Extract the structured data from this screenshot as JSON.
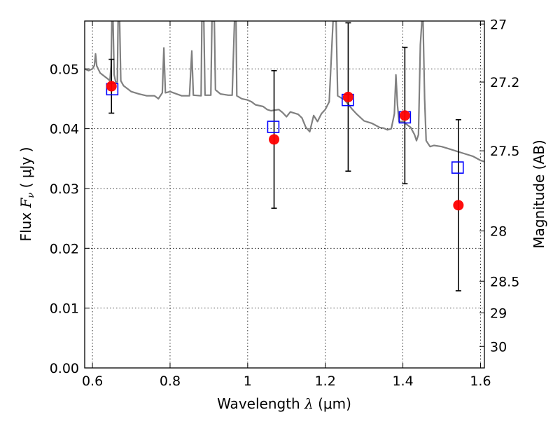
{
  "chart_data": {
    "type": "scatter",
    "xlabel": {
      "prefix": "Wavelength  ",
      "symbol": "λ",
      "suffix": " (μm)"
    },
    "ylabel": {
      "prefix": "Flux  ",
      "symbol": "F",
      "subscript": "ν",
      "suffix": "  ( μJy )"
    },
    "y2label": "Magnitude (AB)",
    "xlim": [
      0.58,
      1.61
    ],
    "ylim": [
      0.0,
      0.058
    ],
    "grid": true,
    "x_ticks": [
      {
        "value": 0.6,
        "label": "0.6"
      },
      {
        "value": 0.8,
        "label": "0.8"
      },
      {
        "value": 1.0,
        "label": "1"
      },
      {
        "value": 1.2,
        "label": "1.2"
      },
      {
        "value": 1.4,
        "label": "1.4"
      },
      {
        "value": 1.6,
        "label": "1.6"
      }
    ],
    "y_ticks": [
      {
        "value": 0.0,
        "label": "0.00"
      },
      {
        "value": 0.01,
        "label": "0.01"
      },
      {
        "value": 0.02,
        "label": "0.02"
      },
      {
        "value": 0.03,
        "label": "0.03"
      },
      {
        "value": 0.04,
        "label": "0.04"
      },
      {
        "value": 0.05,
        "label": "0.05"
      }
    ],
    "y2_ticks": [
      {
        "flux": 0.0575,
        "label": "27"
      },
      {
        "flux": 0.0478,
        "label": "27.2"
      },
      {
        "flux": 0.0363,
        "label": "27.5"
      },
      {
        "flux": 0.0229,
        "label": "28"
      },
      {
        "flux": 0.0145,
        "label": "28.5"
      },
      {
        "flux": 0.0092,
        "label": "29"
      },
      {
        "flux": 0.0036,
        "label": "30"
      }
    ],
    "series": [
      {
        "kind": "observed",
        "marker": "circle",
        "color": "#ff0000",
        "points": [
          {
            "x": 0.649,
            "y": 0.0471,
            "err": 0.0045
          },
          {
            "x": 1.068,
            "y": 0.0382,
            "err": 0.0115
          },
          {
            "x": 1.259,
            "y": 0.0453,
            "err": 0.0124
          },
          {
            "x": 1.405,
            "y": 0.0422,
            "err": 0.0114
          },
          {
            "x": 1.543,
            "y": 0.0272,
            "err": 0.0143
          }
        ]
      },
      {
        "kind": "model_band_flux",
        "marker": "square-open",
        "color": "#0000ff",
        "points": [
          {
            "x": 0.651,
            "y": 0.0466
          },
          {
            "x": 1.066,
            "y": 0.0403
          },
          {
            "x": 1.258,
            "y": 0.0448
          },
          {
            "x": 1.405,
            "y": 0.0419
          },
          {
            "x": 1.541,
            "y": 0.0335
          }
        ]
      },
      {
        "kind": "model_spectrum",
        "marker": "line",
        "color": "#808080",
        "points": [
          [
            0.58,
            0.05
          ],
          [
            0.59,
            0.0497
          ],
          [
            0.6,
            0.05
          ],
          [
            0.605,
            0.0506
          ],
          [
            0.608,
            0.0525
          ],
          [
            0.611,
            0.0505
          ],
          [
            0.62,
            0.0493
          ],
          [
            0.63,
            0.0488
          ],
          [
            0.64,
            0.0483
          ],
          [
            0.645,
            0.048
          ],
          [
            0.648,
            0.0505
          ],
          [
            0.65,
            0.058
          ],
          [
            0.653,
            0.058
          ],
          [
            0.656,
            0.049
          ],
          [
            0.66,
            0.0478
          ],
          [
            0.664,
            0.0478
          ],
          [
            0.666,
            0.058
          ],
          [
            0.67,
            0.058
          ],
          [
            0.673,
            0.048
          ],
          [
            0.68,
            0.0472
          ],
          [
            0.7,
            0.0462
          ],
          [
            0.72,
            0.0458
          ],
          [
            0.74,
            0.0455
          ],
          [
            0.76,
            0.0455
          ],
          [
            0.77,
            0.045
          ],
          [
            0.78,
            0.046
          ],
          [
            0.784,
            0.0535
          ],
          [
            0.788,
            0.046
          ],
          [
            0.8,
            0.0462
          ],
          [
            0.83,
            0.0455
          ],
          [
            0.85,
            0.0455
          ],
          [
            0.856,
            0.053
          ],
          [
            0.86,
            0.0456
          ],
          [
            0.88,
            0.0455
          ],
          [
            0.882,
            0.058
          ],
          [
            0.887,
            0.058
          ],
          [
            0.89,
            0.0456
          ],
          [
            0.905,
            0.0456
          ],
          [
            0.908,
            0.058
          ],
          [
            0.914,
            0.058
          ],
          [
            0.917,
            0.0465
          ],
          [
            0.93,
            0.0458
          ],
          [
            0.95,
            0.0456
          ],
          [
            0.96,
            0.0456
          ],
          [
            0.966,
            0.058
          ],
          [
            0.97,
            0.058
          ],
          [
            0.972,
            0.0455
          ],
          [
            0.985,
            0.045
          ],
          [
            1.0,
            0.0448
          ],
          [
            1.01,
            0.0445
          ],
          [
            1.02,
            0.044
          ],
          [
            1.04,
            0.0437
          ],
          [
            1.05,
            0.0432
          ],
          [
            1.06,
            0.043
          ],
          [
            1.08,
            0.0432
          ],
          [
            1.09,
            0.0427
          ],
          [
            1.1,
            0.042
          ],
          [
            1.11,
            0.0428
          ],
          [
            1.13,
            0.0424
          ],
          [
            1.14,
            0.0418
          ],
          [
            1.15,
            0.0402
          ],
          [
            1.16,
            0.0395
          ],
          [
            1.17,
            0.0422
          ],
          [
            1.18,
            0.0412
          ],
          [
            1.19,
            0.0425
          ],
          [
            1.2,
            0.0432
          ],
          [
            1.21,
            0.0445
          ],
          [
            1.22,
            0.058
          ],
          [
            1.228,
            0.058
          ],
          [
            1.232,
            0.0455
          ],
          [
            1.25,
            0.0448
          ],
          [
            1.26,
            0.044
          ],
          [
            1.27,
            0.0432
          ],
          [
            1.28,
            0.0425
          ],
          [
            1.3,
            0.0413
          ],
          [
            1.32,
            0.0409
          ],
          [
            1.34,
            0.0402
          ],
          [
            1.35,
            0.0401
          ],
          [
            1.36,
            0.0398
          ],
          [
            1.37,
            0.04
          ],
          [
            1.378,
            0.0425
          ],
          [
            1.382,
            0.049
          ],
          [
            1.386,
            0.044
          ],
          [
            1.39,
            0.0412
          ],
          [
            1.4,
            0.0412
          ],
          [
            1.42,
            0.0402
          ],
          [
            1.43,
            0.039
          ],
          [
            1.435,
            0.038
          ],
          [
            1.44,
            0.039
          ],
          [
            1.445,
            0.054
          ],
          [
            1.449,
            0.058
          ],
          [
            1.452,
            0.058
          ],
          [
            1.456,
            0.045
          ],
          [
            1.46,
            0.038
          ],
          [
            1.465,
            0.0375
          ],
          [
            1.47,
            0.037
          ],
          [
            1.48,
            0.0372
          ],
          [
            1.5,
            0.037
          ],
          [
            1.52,
            0.0366
          ],
          [
            1.54,
            0.0362
          ],
          [
            1.56,
            0.0358
          ],
          [
            1.58,
            0.0354
          ],
          [
            1.6,
            0.0347
          ],
          [
            1.61,
            0.0345
          ]
        ]
      }
    ]
  }
}
